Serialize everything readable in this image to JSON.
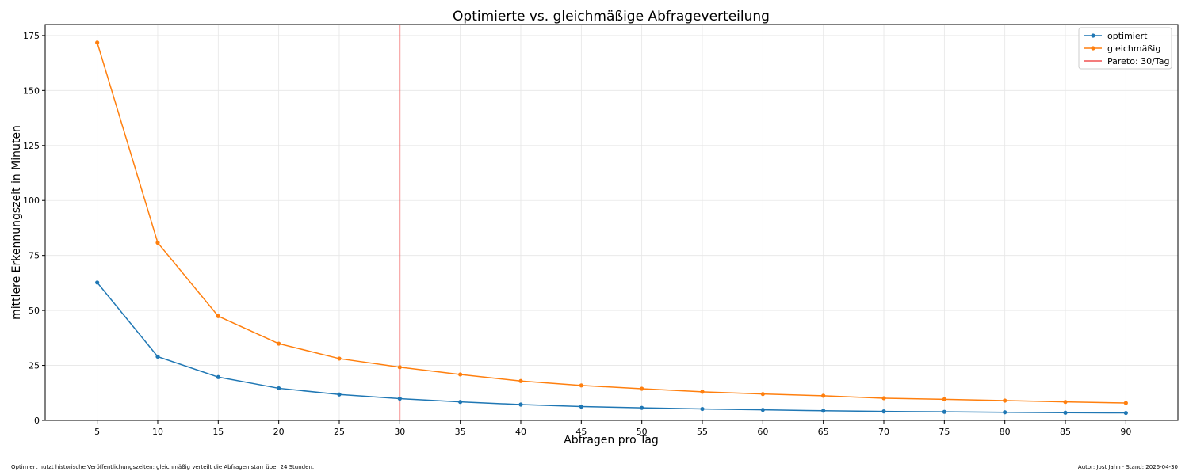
{
  "chart_data": {
    "type": "line",
    "title": "Optimierte vs. gleichmäßige Abfrageverteilung",
    "xlabel": "Abfragen pro Tag",
    "ylabel": "mittlere Erkennungszeit in Minuten",
    "x": [
      5,
      10,
      15,
      20,
      25,
      30,
      35,
      40,
      45,
      50,
      55,
      60,
      65,
      70,
      75,
      80,
      85,
      90
    ],
    "xlim": [
      0.7,
      94.3
    ],
    "ylim": [
      0,
      180
    ],
    "xticks": [
      5,
      10,
      15,
      20,
      25,
      30,
      35,
      40,
      45,
      50,
      55,
      60,
      65,
      70,
      75,
      80,
      85,
      90
    ],
    "yticks": [
      0,
      25,
      50,
      75,
      100,
      125,
      150,
      175
    ],
    "grid": true,
    "legend_position": "top-right",
    "series": [
      {
        "name": "optimiert",
        "color": "#1f77b4",
        "values": [
          62.7,
          29.0,
          19.7,
          14.6,
          11.8,
          9.9,
          8.4,
          7.2,
          6.3,
          5.7,
          5.2,
          4.8,
          4.4,
          4.1,
          3.9,
          3.7,
          3.5,
          3.4
        ]
      },
      {
        "name": "gleichmäßig",
        "color": "#ff7f0e",
        "values": [
          171.8,
          80.8,
          47.4,
          34.9,
          28.1,
          24.2,
          20.9,
          17.9,
          15.9,
          14.4,
          13.0,
          12.0,
          11.2,
          10.1,
          9.6,
          9.0,
          8.4,
          7.9
        ]
      }
    ],
    "vline": {
      "x": 30,
      "name": "Pareto: 30/Tag",
      "color": "#f05050"
    }
  },
  "footer": {
    "left": "Optimiert nutzt historische Veröffentlichungszeiten; gleichmäßig verteilt die Abfragen starr über 24 Stunden.",
    "right": "Autor: Jost Jahn · Stand: 2026-04-30"
  }
}
